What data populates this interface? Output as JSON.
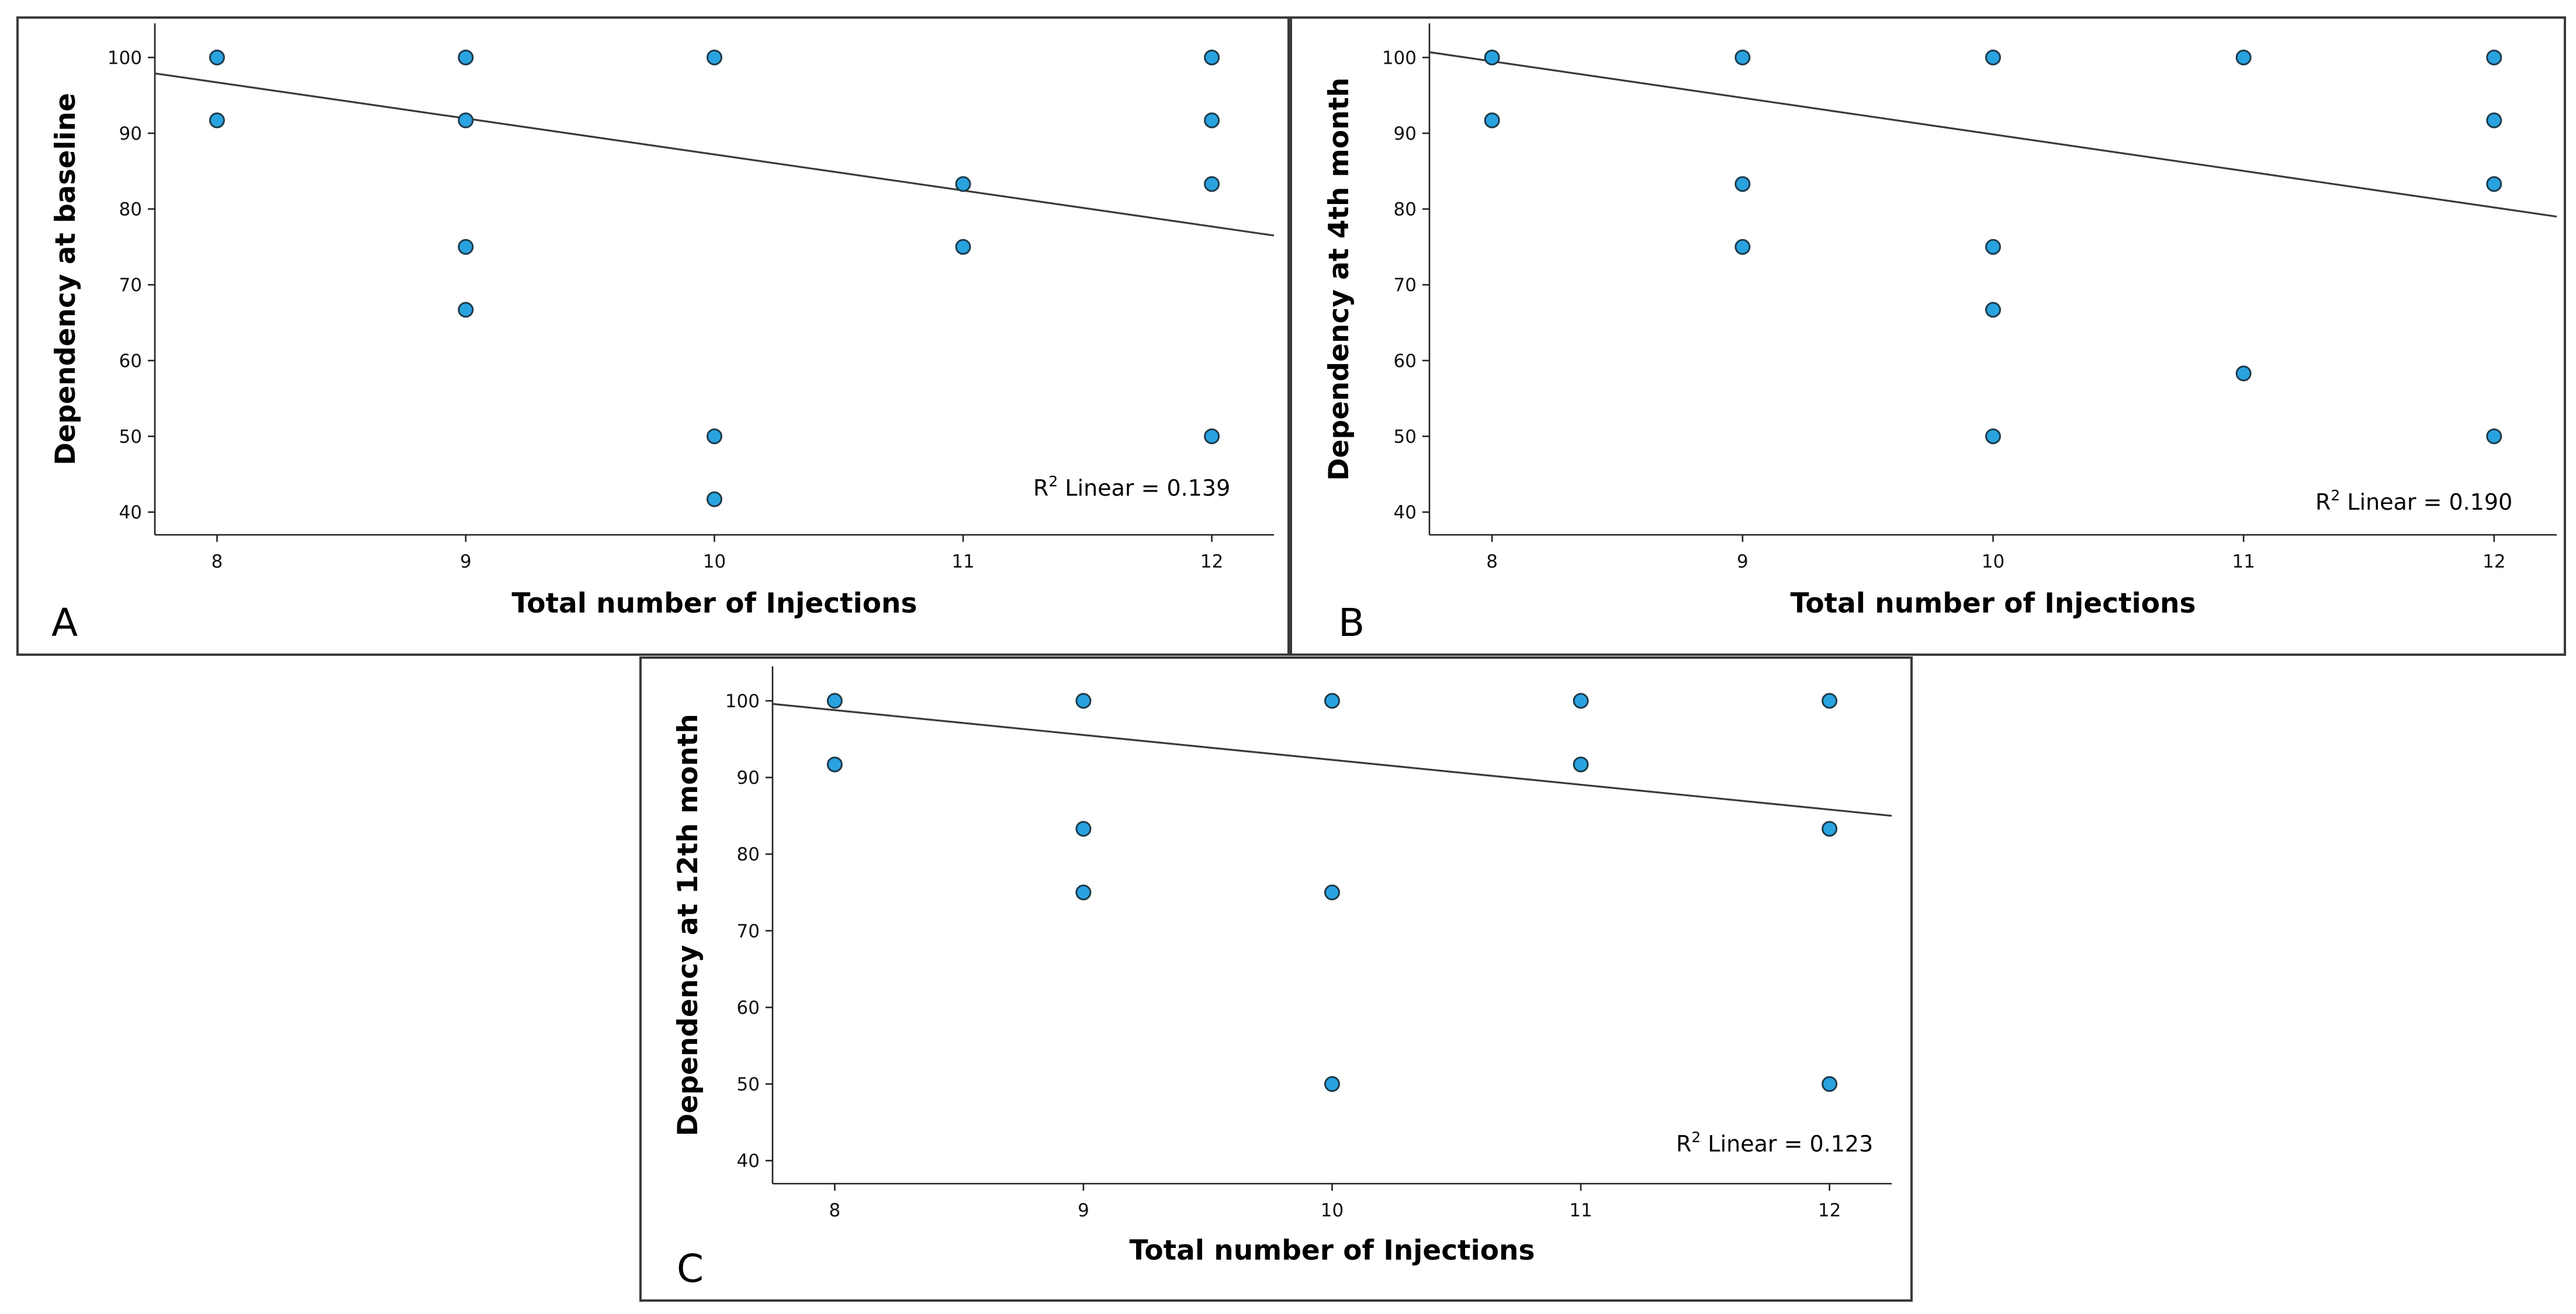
{
  "figure": {
    "panels": [
      "A",
      "B",
      "C"
    ]
  },
  "colors": {
    "point_fill": "#29a3e0",
    "point_stroke": "#1f3a4a",
    "fit_line": "#3a3a3a",
    "frame": "#3a3a3a"
  },
  "chart_data": [
    {
      "type": "scatter",
      "panel_label": "A",
      "xlabel": "Total number of Injections",
      "ylabel": "Dependency at baseline",
      "x_ticks": [
        "8",
        "9",
        "10",
        "11",
        "12"
      ],
      "y_ticks": [
        "40",
        "50",
        "60",
        "70",
        "80",
        "90",
        "100"
      ],
      "xlim": [
        7.75,
        12.25
      ],
      "ylim": [
        37,
        104.5
      ],
      "points": [
        {
          "x": 8,
          "y": 100
        },
        {
          "x": 8,
          "y": 91.7
        },
        {
          "x": 9,
          "y": 100
        },
        {
          "x": 9,
          "y": 91.7
        },
        {
          "x": 9,
          "y": 75
        },
        {
          "x": 9,
          "y": 66.7
        },
        {
          "x": 10,
          "y": 100
        },
        {
          "x": 10,
          "y": 50
        },
        {
          "x": 10,
          "y": 41.7
        },
        {
          "x": 11,
          "y": 83.3
        },
        {
          "x": 11,
          "y": 75
        },
        {
          "x": 12,
          "y": 100
        },
        {
          "x": 12,
          "y": 91.7
        },
        {
          "x": 12,
          "y": 83.3
        },
        {
          "x": 12,
          "y": 50
        }
      ],
      "fit": {
        "x0": 7.75,
        "y0": 97.9,
        "x1": 12.25,
        "y1": 76.5
      },
      "r2": {
        "prefix": "R",
        "sup": "2",
        "text": " Linear = 0.139"
      }
    },
    {
      "type": "scatter",
      "panel_label": "B",
      "xlabel": "Total number of Injections",
      "ylabel": "Dependency at 4th month",
      "x_ticks": [
        "8",
        "9",
        "10",
        "11",
        "12"
      ],
      "y_ticks": [
        "40",
        "50",
        "60",
        "70",
        "80",
        "90",
        "100"
      ],
      "xlim": [
        7.75,
        12.25
      ],
      "ylim": [
        37,
        104.5
      ],
      "points": [
        {
          "x": 8,
          "y": 100
        },
        {
          "x": 8,
          "y": 91.7
        },
        {
          "x": 9,
          "y": 100
        },
        {
          "x": 9,
          "y": 83.3
        },
        {
          "x": 9,
          "y": 75
        },
        {
          "x": 10,
          "y": 100
        },
        {
          "x": 10,
          "y": 75
        },
        {
          "x": 10,
          "y": 66.7
        },
        {
          "x": 10,
          "y": 50
        },
        {
          "x": 11,
          "y": 100
        },
        {
          "x": 11,
          "y": 58.3
        },
        {
          "x": 12,
          "y": 100
        },
        {
          "x": 12,
          "y": 91.7
        },
        {
          "x": 12,
          "y": 83.3
        },
        {
          "x": 12,
          "y": 50
        }
      ],
      "fit": {
        "x0": 7.75,
        "y0": 100.7,
        "x1": 12.25,
        "y1": 79.0
      },
      "r2": {
        "prefix": "R",
        "sup": "2",
        "text": " Linear = 0.190"
      }
    },
    {
      "type": "scatter",
      "panel_label": "C",
      "xlabel": "Total number of Injections",
      "ylabel": "Dependency at 12th month",
      "x_ticks": [
        "8",
        "9",
        "10",
        "11",
        "12"
      ],
      "y_ticks": [
        "40",
        "50",
        "60",
        "70",
        "80",
        "90",
        "100"
      ],
      "xlim": [
        7.75,
        12.25
      ],
      "ylim": [
        37,
        104.5
      ],
      "points": [
        {
          "x": 8,
          "y": 100
        },
        {
          "x": 8,
          "y": 91.7
        },
        {
          "x": 9,
          "y": 100
        },
        {
          "x": 9,
          "y": 83.3
        },
        {
          "x": 9,
          "y": 75
        },
        {
          "x": 10,
          "y": 100
        },
        {
          "x": 10,
          "y": 75
        },
        {
          "x": 10,
          "y": 50
        },
        {
          "x": 11,
          "y": 100
        },
        {
          "x": 11,
          "y": 91.7
        },
        {
          "x": 12,
          "y": 100
        },
        {
          "x": 12,
          "y": 83.3
        },
        {
          "x": 12,
          "y": 50
        }
      ],
      "fit": {
        "x0": 7.75,
        "y0": 99.6,
        "x1": 12.25,
        "y1": 85.0
      },
      "r2": {
        "prefix": "R",
        "sup": "2",
        "text": " Linear = 0.123"
      }
    }
  ]
}
